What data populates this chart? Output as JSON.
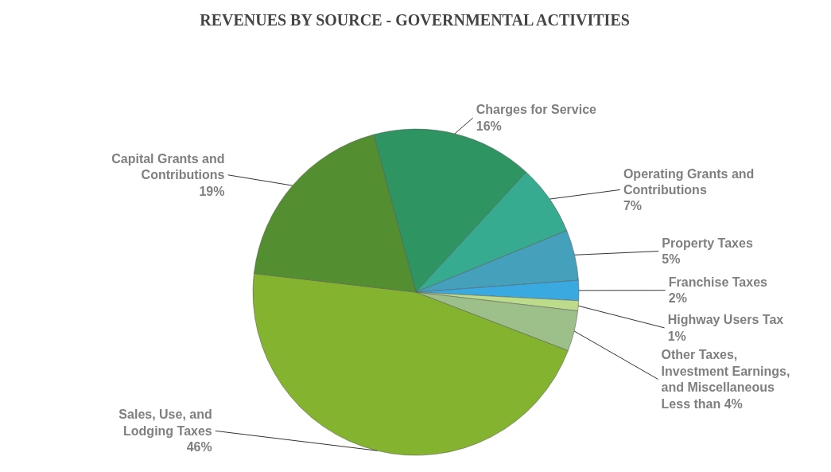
{
  "chart_data": {
    "type": "pie",
    "title": "REVENUES BY SOURCE - GOVERNMENTAL ACTIVITIES",
    "categories": [
      "Charges for Service",
      "Operating Grants and Contributions",
      "Property Taxes",
      "Franchise Taxes",
      "Highway Users Tax",
      "Other Taxes, Investment Earnings, and Miscellaneous",
      "Sales, Use, and Lodging Taxes",
      "Capital Grants and Contributions"
    ],
    "values": [
      16,
      7,
      5,
      2,
      1,
      4,
      46,
      19
    ],
    "value_labels": [
      "16%",
      "7%",
      "5%",
      "2%",
      "1%",
      "Less than 4%",
      "46%",
      "19%"
    ],
    "colors": [
      "#2e9462",
      "#36ab8f",
      "#45a0bb",
      "#3aa9e0",
      "#bcdc8c",
      "#9dbf8a",
      "#84b32f",
      "#538f31"
    ]
  }
}
